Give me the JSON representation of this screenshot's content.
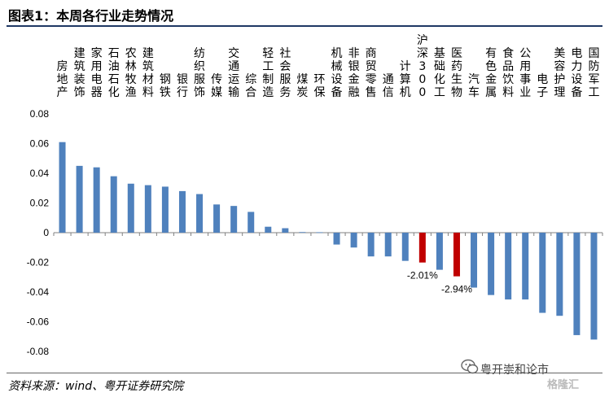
{
  "figure": {
    "title": "图表1：本周各行业走势情况",
    "source": "资料来源：wind、粤开证券研究院",
    "watermark_text": "粤开崇和论市",
    "watermark_logo": "格隆汇"
  },
  "colors": {
    "bar": "#4f81bd",
    "highlight": "#c00000",
    "axis": "#808080"
  },
  "chart_data": {
    "type": "bar",
    "title": "",
    "xlabel": "",
    "ylabel": "",
    "ylim": [
      -0.08,
      0.08
    ],
    "yticks": [
      "0.08",
      "0.06",
      "0.04",
      "0.02",
      "0",
      "-0.02",
      "-0.04",
      "-0.06",
      "-0.08"
    ],
    "ytick_values": [
      0.08,
      0.06,
      0.04,
      0.02,
      0,
      -0.02,
      -0.04,
      -0.06,
      -0.08
    ],
    "grid": false,
    "categories": [
      "房地产",
      "建筑装饰",
      "家用电器",
      "石油石化",
      "农林牧渔",
      "建筑材料",
      "钢铁",
      "银行",
      "纺织服饰",
      "传媒",
      "交通运输",
      "综合",
      "轻工制造",
      "社会服务",
      "煤炭",
      "环保",
      "机械设备",
      "非银金融",
      "商贸零售",
      "通信",
      "计算机",
      "沪深300",
      "基础化工",
      "医药生物",
      "汽车",
      "有色金属",
      "食品饮料",
      "公用事业",
      "电子",
      "美容护理",
      "电力设备",
      "国防军工"
    ],
    "values": [
      0.061,
      0.045,
      0.044,
      0.038,
      0.033,
      0.032,
      0.031,
      0.028,
      0.026,
      0.019,
      0.018,
      0.014,
      0.004,
      0.003,
      0.0004,
      0.0003,
      -0.008,
      -0.01,
      -0.016,
      -0.016,
      -0.019,
      -0.0201,
      -0.025,
      -0.0294,
      -0.037,
      -0.042,
      -0.045,
      -0.045,
      -0.054,
      -0.056,
      -0.069,
      -0.072
    ],
    "highlighted": [
      21,
      23
    ],
    "annotations": [
      {
        "category_index": 21,
        "text": "-2.01%"
      },
      {
        "category_index": 23,
        "text": "-2.94%"
      }
    ]
  }
}
